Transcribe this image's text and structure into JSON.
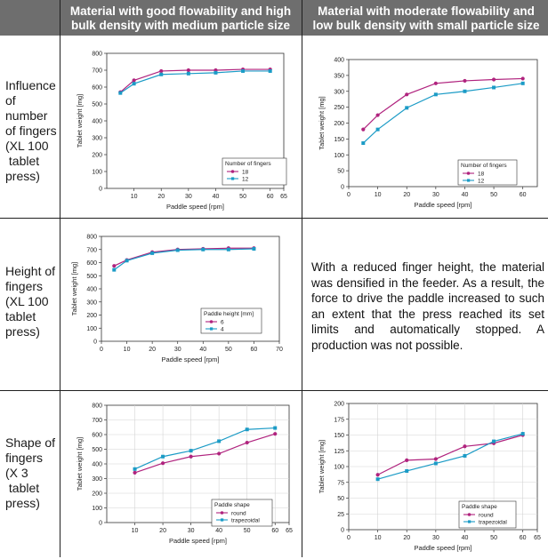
{
  "header": {
    "col1": [
      "Material with good flowability and high",
      "bulk density with medium particle size"
    ],
    "col2": [
      "Material with moderate flowability and",
      "low bulk density with small particle size"
    ]
  },
  "rows": {
    "r1": [
      "Influence",
      "of",
      "number",
      "of fingers",
      "(XL 100",
      " tablet",
      "press)"
    ],
    "r2": [
      "Height of",
      "fingers",
      "(XL 100",
      "tablet",
      "press)"
    ],
    "r3": [
      "Shape of",
      "fingers",
      "(X 3",
      " tablet",
      "press)"
    ]
  },
  "note": "With a reduced finger height, the material was densified in the feeder. As a result, the force to drive the paddle increased to such an extent that the press reached its set limits and automatically stopped. A production was not possible.",
  "colors": {
    "magenta": "#b0237e",
    "cyan": "#1b9bc6",
    "header": "#6e6e6e"
  },
  "chart_data": [
    {
      "type": "line",
      "xlabel": "Paddle speed [rpm]",
      "ylabel": "Tablet weight [mg]",
      "xlim": [
        0,
        65
      ],
      "xticks": [
        10,
        20,
        30,
        40,
        50,
        60,
        65
      ],
      "ylim": [
        0,
        800
      ],
      "yticks": [
        0,
        100,
        200,
        300,
        400,
        500,
        600,
        700,
        800
      ],
      "grid": false,
      "legend": {
        "title": "Number of fingers",
        "position": "bottom-right"
      },
      "series": [
        {
          "name": "18",
          "color": "#b0237e",
          "marker": "circle",
          "x": [
            5,
            10,
            20,
            30,
            40,
            50,
            60
          ],
          "y": [
            570,
            640,
            695,
            700,
            700,
            705,
            705
          ]
        },
        {
          "name": "12",
          "color": "#1b9bc6",
          "marker": "square",
          "x": [
            5,
            10,
            20,
            30,
            40,
            50,
            60
          ],
          "y": [
            565,
            620,
            675,
            680,
            685,
            695,
            695
          ]
        }
      ]
    },
    {
      "type": "line",
      "xlabel": "Paddle speed [rpm]",
      "ylabel": "Tablet weight [mg]",
      "xlim": [
        0,
        65
      ],
      "xticks": [
        0,
        10,
        20,
        30,
        40,
        50,
        60
      ],
      "ylim": [
        0,
        400
      ],
      "yticks": [
        0,
        50,
        100,
        150,
        200,
        250,
        300,
        350,
        400
      ],
      "grid": false,
      "legend": {
        "title": "Number of fingers",
        "position": "bottom-right"
      },
      "series": [
        {
          "name": "18",
          "color": "#b0237e",
          "marker": "circle",
          "x": [
            5,
            10,
            20,
            30,
            40,
            50,
            60
          ],
          "y": [
            180,
            225,
            290,
            325,
            333,
            337,
            340
          ]
        },
        {
          "name": "12",
          "color": "#1b9bc6",
          "marker": "square",
          "x": [
            5,
            10,
            20,
            30,
            40,
            50,
            60
          ],
          "y": [
            137,
            180,
            248,
            290,
            300,
            312,
            325
          ]
        }
      ]
    },
    {
      "type": "line",
      "xlabel": "Paddle speed [rpm]",
      "ylabel": "Tablet weight [mg]",
      "xlim": [
        0,
        70
      ],
      "xticks": [
        0,
        10,
        20,
        30,
        40,
        50,
        60,
        70
      ],
      "ylim": [
        0,
        800
      ],
      "yticks": [
        0,
        100,
        200,
        300,
        400,
        500,
        600,
        700,
        800
      ],
      "grid": false,
      "legend": {
        "title": "Paddle height [mm]",
        "position": "bottom-right"
      },
      "series": [
        {
          "name": "6",
          "color": "#b0237e",
          "marker": "circle",
          "x": [
            5,
            10,
            20,
            30,
            40,
            50,
            60
          ],
          "y": [
            575,
            620,
            680,
            700,
            705,
            710,
            710
          ]
        },
        {
          "name": "4",
          "color": "#1b9bc6",
          "marker": "square",
          "x": [
            5,
            10,
            20,
            30,
            40,
            50,
            60
          ],
          "y": [
            545,
            615,
            672,
            695,
            700,
            700,
            705
          ]
        }
      ]
    },
    {
      "type": "line",
      "xlabel": "Paddle speed [rpm]",
      "ylabel": "Tablet weight [mg]",
      "xlim": [
        0,
        65
      ],
      "xticks": [
        10,
        20,
        30,
        40,
        50,
        60,
        65
      ],
      "ylim": [
        0,
        800
      ],
      "yticks": [
        0,
        100,
        200,
        300,
        400,
        500,
        600,
        700,
        800
      ],
      "grid": true,
      "legend": {
        "title": "Paddle shape",
        "position": "bottom-right"
      },
      "series": [
        {
          "name": "round",
          "color": "#b0237e",
          "marker": "circle",
          "x": [
            10,
            20,
            30,
            40,
            50,
            60
          ],
          "y": [
            340,
            405,
            450,
            470,
            545,
            605
          ]
        },
        {
          "name": "trapezoidal",
          "color": "#1b9bc6",
          "marker": "square",
          "x": [
            10,
            20,
            30,
            40,
            50,
            60
          ],
          "y": [
            365,
            450,
            490,
            555,
            635,
            645
          ]
        }
      ]
    },
    {
      "type": "line",
      "xlabel": "Paddle speed [rpm]",
      "ylabel": "Tablet weight [mg]",
      "xlim": [
        0,
        65
      ],
      "xticks": [
        0,
        10,
        20,
        30,
        40,
        50,
        60,
        65
      ],
      "ylim": [
        0,
        200
      ],
      "yticks": [
        0,
        25,
        50,
        75,
        100,
        125,
        150,
        175,
        200
      ],
      "grid": true,
      "legend": {
        "title": "Paddle shape",
        "position": "bottom-right"
      },
      "series": [
        {
          "name": "round",
          "color": "#b0237e",
          "marker": "circle",
          "x": [
            10,
            20,
            30,
            40,
            50,
            60
          ],
          "y": [
            87,
            110,
            112,
            132,
            137,
            150
          ]
        },
        {
          "name": "trapezoidal",
          "color": "#1b9bc6",
          "marker": "square",
          "x": [
            10,
            20,
            30,
            40,
            50,
            60
          ],
          "y": [
            80,
            93,
            105,
            117,
            140,
            152
          ]
        }
      ]
    }
  ]
}
